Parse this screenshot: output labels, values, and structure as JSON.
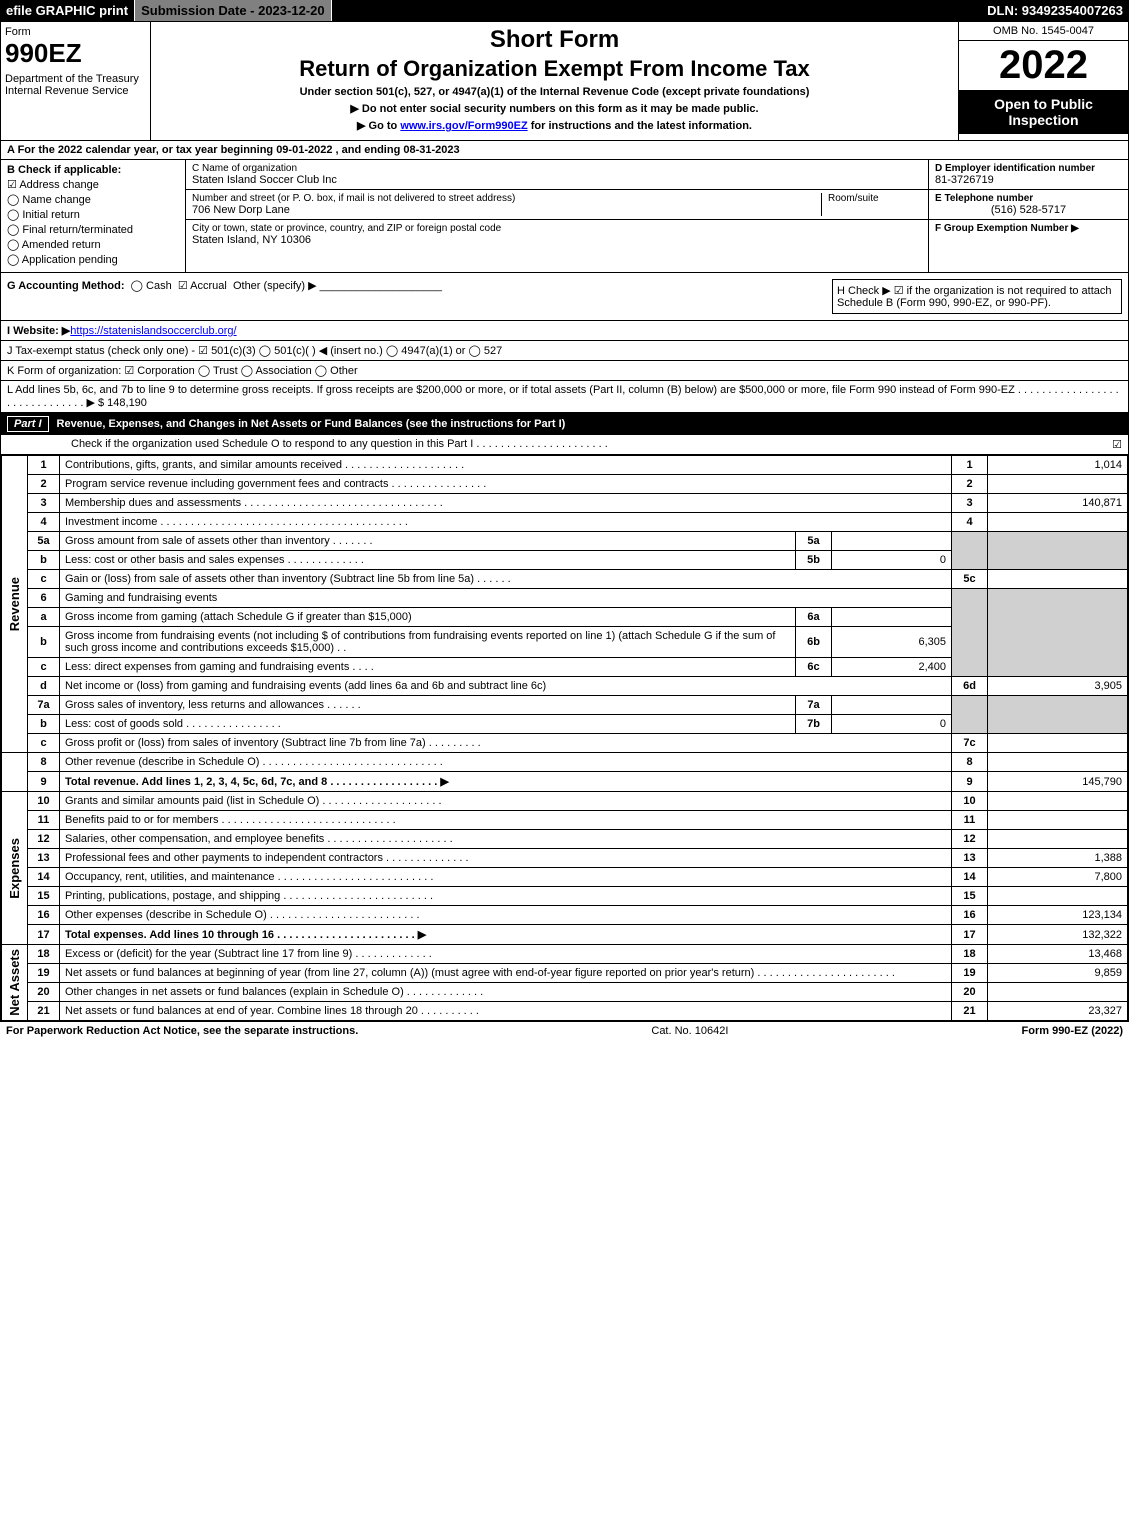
{
  "topbar": {
    "efile": "efile GRAPHIC print",
    "submission": "Submission Date - 2023-12-20",
    "dln": "DLN: 93492354007263"
  },
  "header": {
    "form_word": "Form",
    "form_no": "990EZ",
    "dept": "Department of the Treasury\nInternal Revenue Service",
    "short": "Short Form",
    "title": "Return of Organization Exempt From Income Tax",
    "sub": "Under section 501(c), 527, or 4947(a)(1) of the Internal Revenue Code (except private foundations)",
    "note1": "▶ Do not enter social security numbers on this form as it may be made public.",
    "note2_pre": "▶ Go to ",
    "note2_link": "www.irs.gov/Form990EZ",
    "note2_post": " for instructions and the latest information.",
    "omb": "OMB No. 1545-0047",
    "year": "2022",
    "inspect": "Open to Public Inspection"
  },
  "row_a": "A  For the 2022 calendar year, or tax year beginning 09-01-2022 , and ending 08-31-2023",
  "b": {
    "hdr": "B  Check if applicable:",
    "opts": [
      "Address change",
      "Name change",
      "Initial return",
      "Final return/terminated",
      "Amended return",
      "Application pending"
    ],
    "checked": 0
  },
  "c": {
    "name_lbl": "C Name of organization",
    "name": "Staten Island Soccer Club Inc",
    "street_lbl": "Number and street (or P. O. box, if mail is not delivered to street address)",
    "street": "706 New Dorp Lane",
    "room_lbl": "Room/suite",
    "room": "",
    "city_lbl": "City or town, state or province, country, and ZIP or foreign postal code",
    "city": "Staten Island, NY  10306"
  },
  "d": {
    "ein_lbl": "D Employer identification number",
    "ein": "81-3726719",
    "tel_lbl": "E Telephone number",
    "tel": "(516) 528-5717",
    "grp_lbl": "F Group Exemption Number  ▶",
    "grp": ""
  },
  "g": {
    "label": "G Accounting Method:",
    "cash": "Cash",
    "accrual": "Accrual",
    "other": "Other (specify) ▶",
    "accrual_checked": true
  },
  "h": "H  Check ▶ ☑ if the organization is not required to attach Schedule B (Form 990, 990-EZ, or 990-PF).",
  "i": {
    "label": "I Website: ▶",
    "url": "https://statenislandsoccerclub.org/"
  },
  "j": "J Tax-exempt status (check only one) - ☑ 501(c)(3)  ◯ 501(c)(  ) ◀ (insert no.)  ◯ 4947(a)(1) or  ◯ 527",
  "k": "K Form of organization:  ☑ Corporation  ◯ Trust  ◯ Association  ◯ Other",
  "l": {
    "text": "L Add lines 5b, 6c, and 7b to line 9 to determine gross receipts. If gross receipts are $200,000 or more, or if total assets (Part II, column (B) below) are $500,000 or more, file Form 990 instead of Form 990-EZ  . . . . . . . . . . . . . . . . . . . . . . . . . . . . . .  ▶ $",
    "val": "148,190"
  },
  "part1": {
    "tag": "Part I",
    "title": "Revenue, Expenses, and Changes in Net Assets or Fund Balances (see the instructions for Part I)",
    "sub": "Check if the organization used Schedule O to respond to any question in this Part I . . . . . . . . . . . . . . . . . . . . . .",
    "sub_checked": "☑"
  },
  "sides": {
    "revenue": "Revenue",
    "expenses": "Expenses",
    "netassets": "Net Assets"
  },
  "lines": {
    "l1": {
      "no": "1",
      "desc": "Contributions, gifts, grants, and similar amounts received . . . . . . . . . . . . . . . . . . . .",
      "rno": "1",
      "val": "1,014"
    },
    "l2": {
      "no": "2",
      "desc": "Program service revenue including government fees and contracts . . . . . . . . . . . . . . . .",
      "rno": "2",
      "val": ""
    },
    "l3": {
      "no": "3",
      "desc": "Membership dues and assessments . . . . . . . . . . . . . . . . . . . . . . . . . . . . . . . . .",
      "rno": "3",
      "val": "140,871"
    },
    "l4": {
      "no": "4",
      "desc": "Investment income . . . . . . . . . . . . . . . . . . . . . . . . . . . . . . . . . . . . . . . . .",
      "rno": "4",
      "val": ""
    },
    "l5a": {
      "no": "5a",
      "desc": "Gross amount from sale of assets other than inventory . . . . . . .",
      "subno": "5a",
      "subval": ""
    },
    "l5b": {
      "no": "b",
      "desc": "Less: cost or other basis and sales expenses . . . . . . . . . . . . .",
      "subno": "5b",
      "subval": "0"
    },
    "l5c": {
      "no": "c",
      "desc": "Gain or (loss) from sale of assets other than inventory (Subtract line 5b from line 5a) . . . . . .",
      "rno": "5c",
      "val": ""
    },
    "l6": {
      "no": "6",
      "desc": "Gaming and fundraising events"
    },
    "l6a": {
      "no": "a",
      "desc": "Gross income from gaming (attach Schedule G if greater than $15,000)",
      "subno": "6a",
      "subval": ""
    },
    "l6b": {
      "no": "b",
      "desc": "Gross income from fundraising events (not including $                    of contributions from fundraising events reported on line 1) (attach Schedule G if the sum of such gross income and contributions exceeds $15,000)   .  .",
      "subno": "6b",
      "subval": "6,305"
    },
    "l6c": {
      "no": "c",
      "desc": "Less: direct expenses from gaming and fundraising events    . . . .",
      "subno": "6c",
      "subval": "2,400"
    },
    "l6d": {
      "no": "d",
      "desc": "Net income or (loss) from gaming and fundraising events (add lines 6a and 6b and subtract line 6c)",
      "rno": "6d",
      "val": "3,905"
    },
    "l7a": {
      "no": "7a",
      "desc": "Gross sales of inventory, less returns and allowances . . . . . .",
      "subno": "7a",
      "subval": ""
    },
    "l7b": {
      "no": "b",
      "desc": "Less: cost of goods sold       . . . . . . . . . . . . . . . .",
      "subno": "7b",
      "subval": "0"
    },
    "l7c": {
      "no": "c",
      "desc": "Gross profit or (loss) from sales of inventory (Subtract line 7b from line 7a) . . . . . . . . .",
      "rno": "7c",
      "val": ""
    },
    "l8": {
      "no": "8",
      "desc": "Other revenue (describe in Schedule O) . . . . . . . . . . . . . . . . . . . . . . . . . . . . . .",
      "rno": "8",
      "val": ""
    },
    "l9": {
      "no": "9",
      "desc": "Total revenue. Add lines 1, 2, 3, 4, 5c, 6d, 7c, and 8  . . . . . . . . . . . . . . . . . .  ▶",
      "rno": "9",
      "val": "145,790"
    },
    "l10": {
      "no": "10",
      "desc": "Grants and similar amounts paid (list in Schedule O) . . . . . . . . . . . . . . . . . . . .",
      "rno": "10",
      "val": ""
    },
    "l11": {
      "no": "11",
      "desc": "Benefits paid to or for members     . . . . . . . . . . . . . . . . . . . . . . . . . . . . .",
      "rno": "11",
      "val": ""
    },
    "l12": {
      "no": "12",
      "desc": "Salaries, other compensation, and employee benefits . . . . . . . . . . . . . . . . . . . . .",
      "rno": "12",
      "val": ""
    },
    "l13": {
      "no": "13",
      "desc": "Professional fees and other payments to independent contractors . . . . . . . . . . . . . .",
      "rno": "13",
      "val": "1,388"
    },
    "l14": {
      "no": "14",
      "desc": "Occupancy, rent, utilities, and maintenance . . . . . . . . . . . . . . . . . . . . . . . . . .",
      "rno": "14",
      "val": "7,800"
    },
    "l15": {
      "no": "15",
      "desc": "Printing, publications, postage, and shipping . . . . . . . . . . . . . . . . . . . . . . . . .",
      "rno": "15",
      "val": ""
    },
    "l16": {
      "no": "16",
      "desc": "Other expenses (describe in Schedule O)    . . . . . . . . . . . . . . . . . . . . . . . . .",
      "rno": "16",
      "val": "123,134"
    },
    "l17": {
      "no": "17",
      "desc": "Total expenses. Add lines 10 through 16     . . . . . . . . . . . . . . . . . . . . . . .  ▶",
      "rno": "17",
      "val": "132,322"
    },
    "l18": {
      "no": "18",
      "desc": "Excess or (deficit) for the year (Subtract line 17 from line 9)       . . . . . . . . . . . . .",
      "rno": "18",
      "val": "13,468"
    },
    "l19": {
      "no": "19",
      "desc": "Net assets or fund balances at beginning of year (from line 27, column (A)) (must agree with end-of-year figure reported on prior year's return) . . . . . . . . . . . . . . . . . . . . . . .",
      "rno": "19",
      "val": "9,859"
    },
    "l20": {
      "no": "20",
      "desc": "Other changes in net assets or fund balances (explain in Schedule O) . . . . . . . . . . . . .",
      "rno": "20",
      "val": ""
    },
    "l21": {
      "no": "21",
      "desc": "Net assets or fund balances at end of year. Combine lines 18 through 20 . . . . . . . . . .",
      "rno": "21",
      "val": "23,327"
    }
  },
  "footer": {
    "left": "For Paperwork Reduction Act Notice, see the separate instructions.",
    "center": "Cat. No. 10642I",
    "right": "Form 990-EZ (2022)"
  }
}
